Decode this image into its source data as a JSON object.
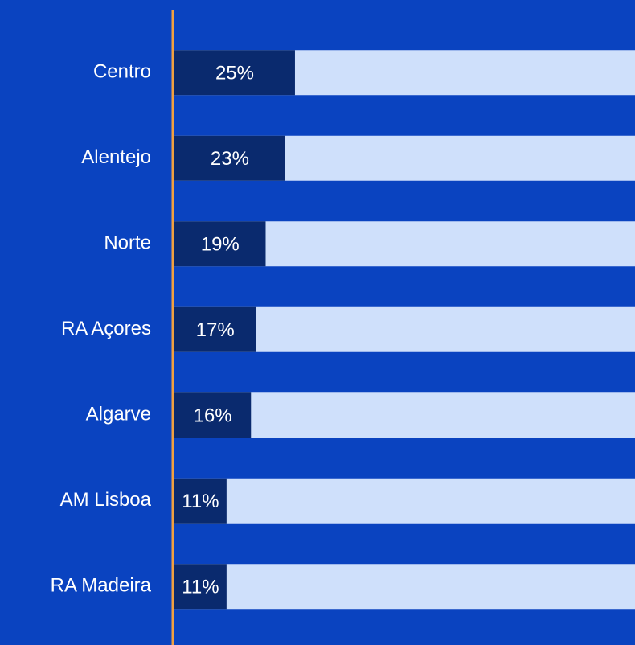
{
  "chart_data": {
    "type": "bar",
    "orientation": "horizontal",
    "categories": [
      "Centro",
      "Alentejo",
      "Norte",
      "RA Açores",
      "Algarve",
      "AM Lisboa",
      "RA Madeira"
    ],
    "values": [
      25,
      23,
      19,
      17,
      16,
      11,
      11
    ],
    "value_labels": [
      "25%",
      "23%",
      "19%",
      "17%",
      "16%",
      "11%",
      "11%"
    ],
    "color": "#0a2a6e",
    "track_color": "#cfe0fb",
    "background": "#0a43c0",
    "axis_color": "#f0a040",
    "xlim": [
      0,
      94.6
    ]
  }
}
